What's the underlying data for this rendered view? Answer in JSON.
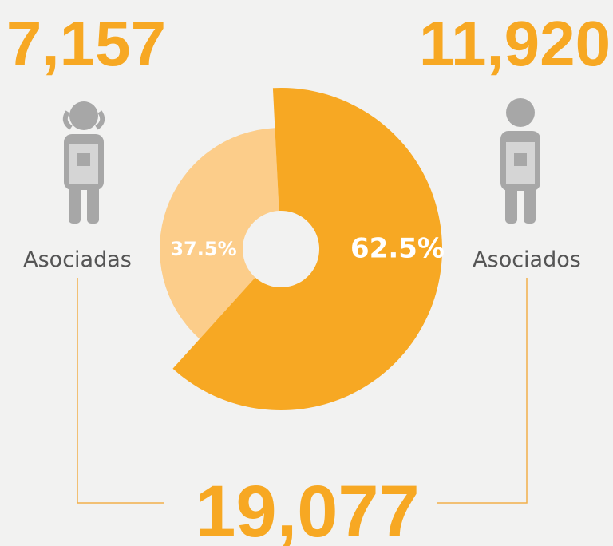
{
  "chart_data": {
    "type": "pie",
    "donut": true,
    "categories": [
      "Asociadas",
      "Asociados"
    ],
    "values": [
      37.5,
      62.5
    ],
    "value_labels": [
      "37.5%",
      "62.5%"
    ],
    "colors": [
      "#fccd8a",
      "#f7a823"
    ],
    "counts": [
      "7,157",
      "11,920"
    ],
    "total": "19,077"
  }
}
